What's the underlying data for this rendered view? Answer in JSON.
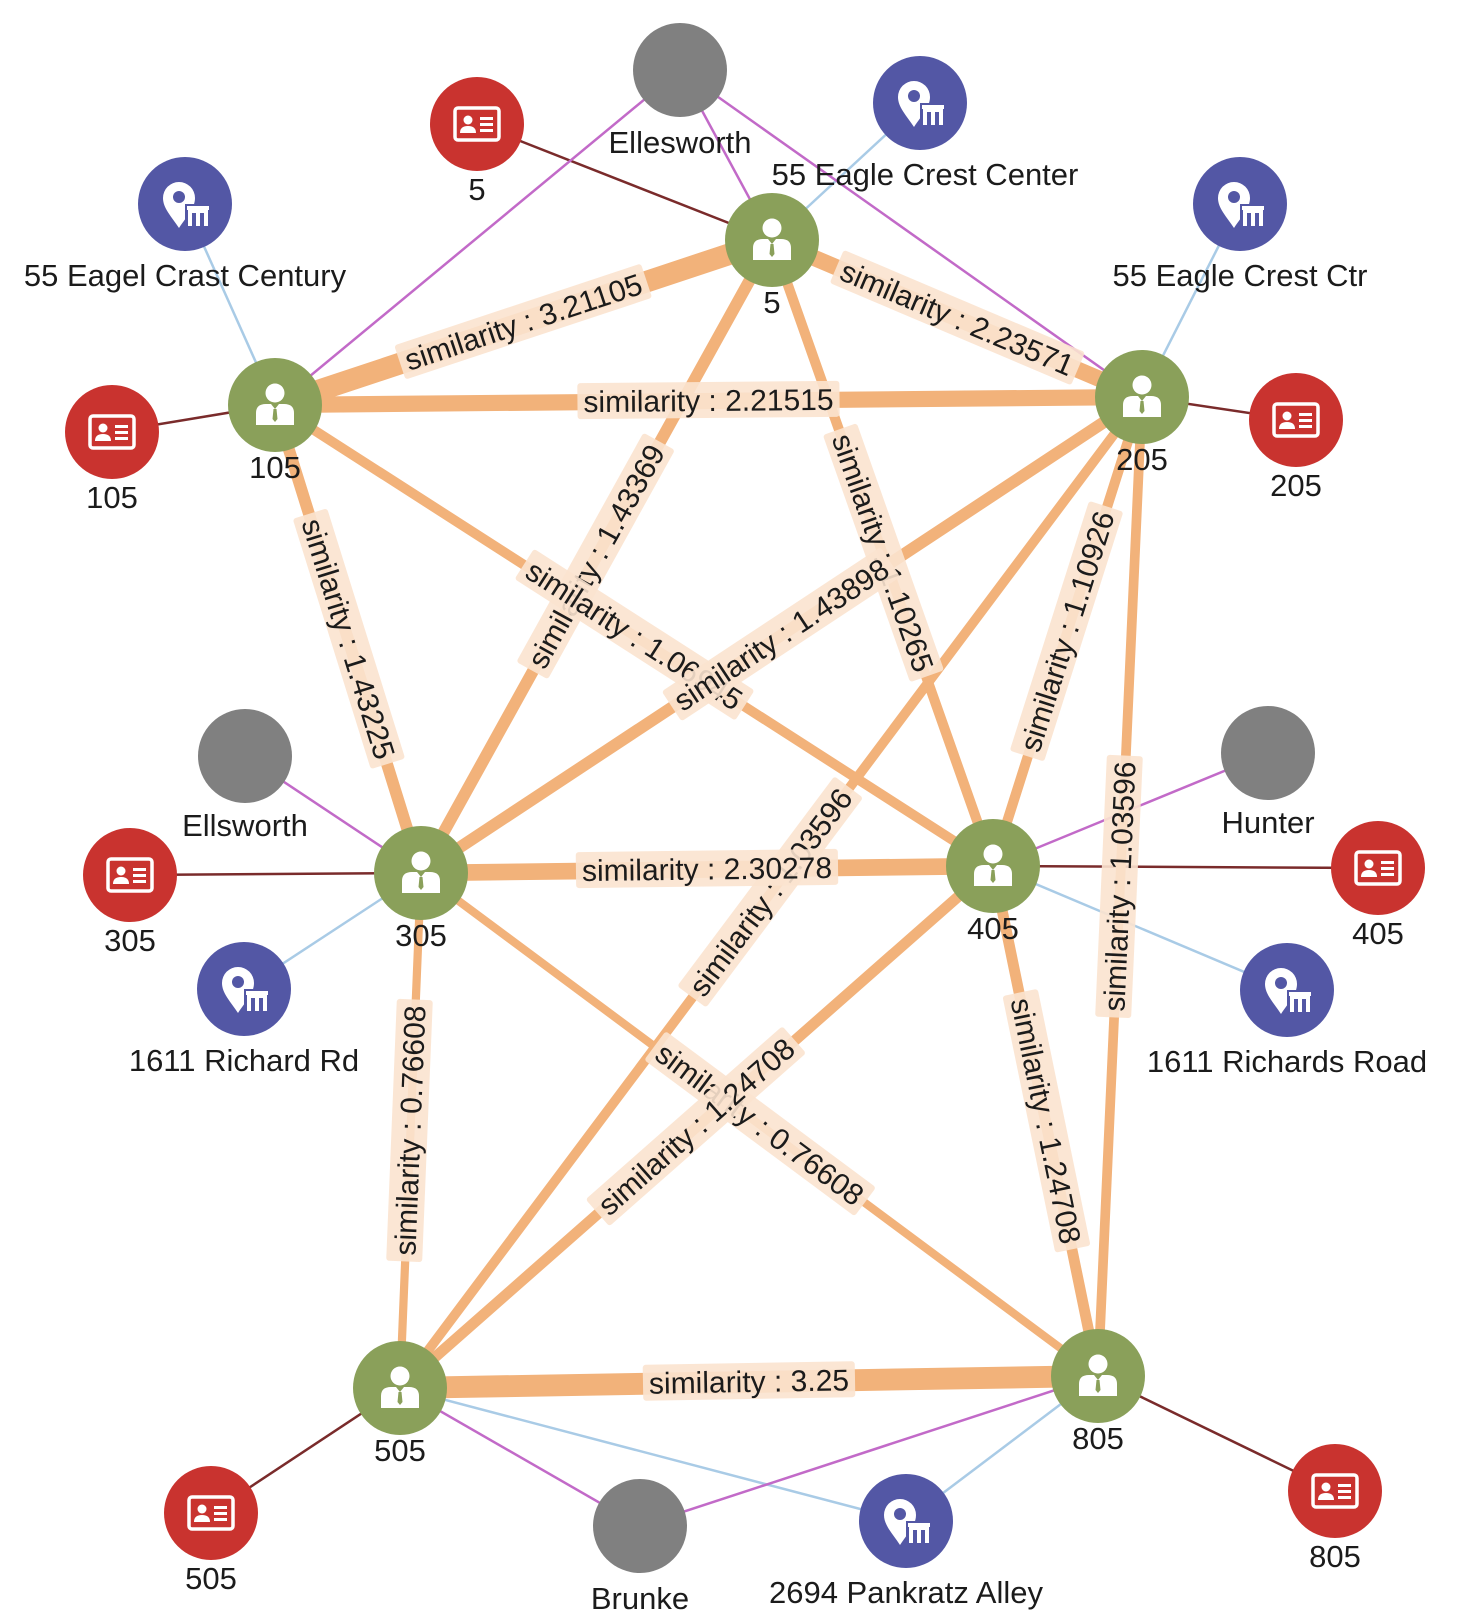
{
  "graph": {
    "colors": {
      "person": "#8aa05a",
      "id_card": "#c9332f",
      "address": "#5357a5",
      "name": "#808080",
      "similarity_edge": "#f2b27a",
      "similarity_label_bg": "#fbe3cf",
      "id_edge": "#7a2b2b",
      "address_edge": "#a9cbe6",
      "name_edge": "#c26ac8"
    },
    "nodes": [
      {
        "id": "p5",
        "type": "person",
        "icon": "person-icon",
        "label": "5"
      },
      {
        "id": "p105",
        "type": "person",
        "icon": "person-icon",
        "label": "105"
      },
      {
        "id": "p205",
        "type": "person",
        "icon": "person-icon",
        "label": "205"
      },
      {
        "id": "p305",
        "type": "person",
        "icon": "person-icon",
        "label": "305"
      },
      {
        "id": "p405",
        "type": "person",
        "icon": "person-icon",
        "label": "405"
      },
      {
        "id": "p505",
        "type": "person",
        "icon": "person-icon",
        "label": "505"
      },
      {
        "id": "p805",
        "type": "person",
        "icon": "person-icon",
        "label": "805"
      },
      {
        "id": "n_ellesworth",
        "type": "name",
        "icon": "",
        "label": "Ellesworth"
      },
      {
        "id": "n_ellsworth",
        "type": "name",
        "icon": "",
        "label": "Ellsworth"
      },
      {
        "id": "n_hunter",
        "type": "name",
        "icon": "",
        "label": "Hunter"
      },
      {
        "id": "n_brunke",
        "type": "name",
        "icon": "",
        "label": "Brunke"
      },
      {
        "id": "c5",
        "type": "id_card",
        "icon": "id-card-icon",
        "label": "5"
      },
      {
        "id": "c105",
        "type": "id_card",
        "icon": "id-card-icon",
        "label": "105"
      },
      {
        "id": "c205",
        "type": "id_card",
        "icon": "id-card-icon",
        "label": "205"
      },
      {
        "id": "c305",
        "type": "id_card",
        "icon": "id-card-icon",
        "label": "305"
      },
      {
        "id": "c405",
        "type": "id_card",
        "icon": "id-card-icon",
        "label": "405"
      },
      {
        "id": "c505",
        "type": "id_card",
        "icon": "id-card-icon",
        "label": "505"
      },
      {
        "id": "c805",
        "type": "id_card",
        "icon": "id-card-icon",
        "label": "805"
      },
      {
        "id": "a_eagle_center",
        "type": "address",
        "icon": "location-building-icon",
        "label": "55 Eagle Crest Center"
      },
      {
        "id": "a_eagel_century",
        "type": "address",
        "icon": "location-building-icon",
        "label": "55 Eagel Crast Century"
      },
      {
        "id": "a_eagle_ctr",
        "type": "address",
        "icon": "location-building-icon",
        "label": "55 Eagle Crest Ctr"
      },
      {
        "id": "a_richard_rd",
        "type": "address",
        "icon": "location-building-icon",
        "label": "1611 Richard Rd"
      },
      {
        "id": "a_richards_road",
        "type": "address",
        "icon": "location-building-icon",
        "label": "1611 Richards Road"
      },
      {
        "id": "a_pankratz",
        "type": "address",
        "icon": "location-building-icon",
        "label": "2694 Pankratz Alley"
      }
    ],
    "similarity_edges": [
      {
        "from": "p105",
        "to": "p5",
        "label": "similarity : 3.21105",
        "weight": 3.21105
      },
      {
        "from": "p5",
        "to": "p205",
        "label": "similarity : 2.23571",
        "weight": 2.23571
      },
      {
        "from": "p105",
        "to": "p205",
        "label": "similarity : 2.21515",
        "weight": 2.21515
      },
      {
        "from": "p5",
        "to": "p305",
        "label": "similarity : 1.43369",
        "weight": 1.43369
      },
      {
        "from": "p5",
        "to": "p405",
        "label": "similarity : 1.10265",
        "weight": 1.10265
      },
      {
        "from": "p105",
        "to": "p305",
        "label": "similarity : 1.43225",
        "weight": 1.43225
      },
      {
        "from": "p105",
        "to": "p405",
        "label": "similarity : 1.06945",
        "weight": 1.06945
      },
      {
        "from": "p205",
        "to": "p305",
        "label": "similarity : 1.43898",
        "weight": 1.43898
      },
      {
        "from": "p205",
        "to": "p405",
        "label": "similarity : 1.10926",
        "weight": 1.10926
      },
      {
        "from": "p205",
        "to": "p505",
        "label": "similarity : 1.03596",
        "weight": 1.03596
      },
      {
        "from": "p205",
        "to": "p805",
        "label": "similarity : 1.03596",
        "weight": 1.03596
      },
      {
        "from": "p305",
        "to": "p405",
        "label": "similarity : 2.30278",
        "weight": 2.30278
      },
      {
        "from": "p305",
        "to": "p505",
        "label": "similarity : 0.76608",
        "weight": 0.76608
      },
      {
        "from": "p305",
        "to": "p805",
        "label": "similarity : 0.76608",
        "weight": 0.76608
      },
      {
        "from": "p405",
        "to": "p505",
        "label": "similarity : 1.24708",
        "weight": 1.24708
      },
      {
        "from": "p405",
        "to": "p805",
        "label": "similarity : 1.24708",
        "weight": 1.24708
      },
      {
        "from": "p505",
        "to": "p805",
        "label": "similarity : 3.25",
        "weight": 3.25
      }
    ],
    "other_edges": [
      {
        "from": "p5",
        "to": "c5",
        "kind": "id_edge"
      },
      {
        "from": "p5",
        "to": "a_eagle_center",
        "kind": "address_edge"
      },
      {
        "from": "p5",
        "to": "n_ellesworth",
        "kind": "name_edge"
      },
      {
        "from": "p105",
        "to": "n_ellesworth",
        "kind": "name_edge"
      },
      {
        "from": "p205",
        "to": "n_ellesworth",
        "kind": "name_edge"
      },
      {
        "from": "p105",
        "to": "c105",
        "kind": "id_edge"
      },
      {
        "from": "p105",
        "to": "a_eagel_century",
        "kind": "address_edge"
      },
      {
        "from": "p205",
        "to": "c205",
        "kind": "id_edge"
      },
      {
        "from": "p205",
        "to": "a_eagle_ctr",
        "kind": "address_edge"
      },
      {
        "from": "p305",
        "to": "c305",
        "kind": "id_edge"
      },
      {
        "from": "p305",
        "to": "n_ellsworth",
        "kind": "name_edge"
      },
      {
        "from": "p305",
        "to": "a_richard_rd",
        "kind": "address_edge"
      },
      {
        "from": "p405",
        "to": "c405",
        "kind": "id_edge"
      },
      {
        "from": "p405",
        "to": "n_hunter",
        "kind": "name_edge"
      },
      {
        "from": "p405",
        "to": "a_richards_road",
        "kind": "address_edge"
      },
      {
        "from": "p505",
        "to": "c505",
        "kind": "id_edge"
      },
      {
        "from": "p505",
        "to": "n_brunke",
        "kind": "name_edge"
      },
      {
        "from": "p505",
        "to": "a_pankratz",
        "kind": "address_edge"
      },
      {
        "from": "p805",
        "to": "c805",
        "kind": "id_edge"
      },
      {
        "from": "p805",
        "to": "n_brunke",
        "kind": "name_edge"
      },
      {
        "from": "p805",
        "to": "a_pankratz",
        "kind": "address_edge"
      }
    ]
  }
}
